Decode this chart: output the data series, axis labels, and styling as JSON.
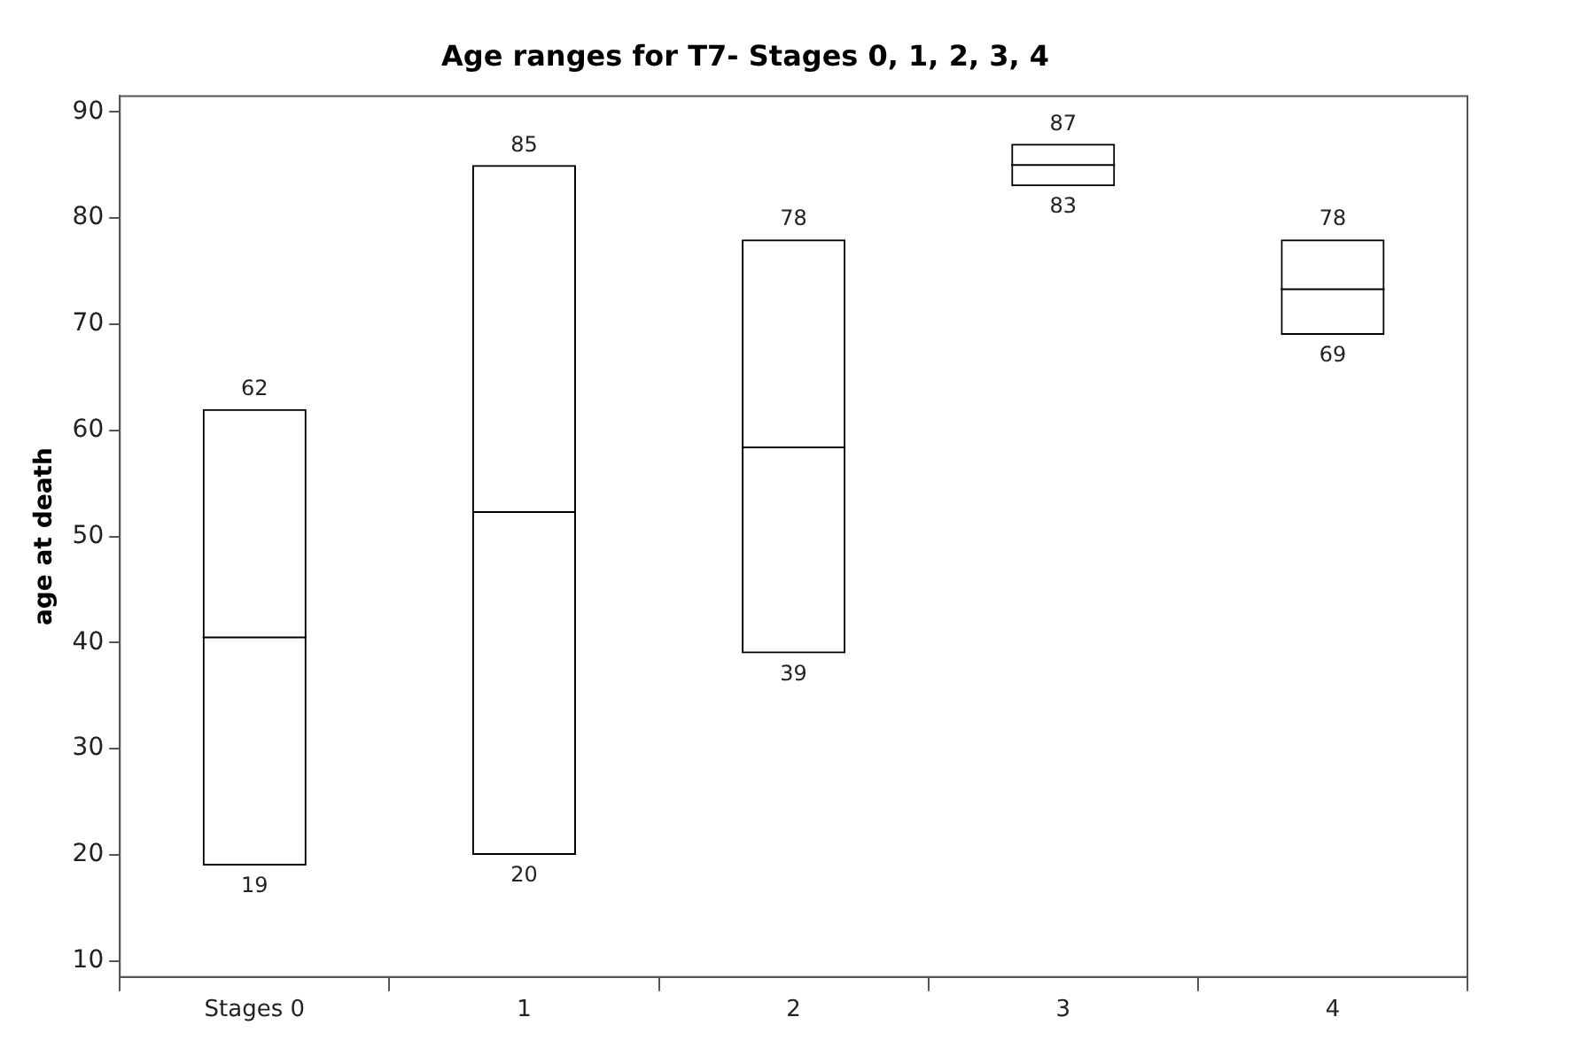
{
  "chart_data": {
    "type": "box",
    "title": "Age ranges for T7- Stages 0, 1, 2, 3, 4",
    "ylabel": "age at death",
    "categories": [
      "Stages 0",
      "1",
      "2",
      "3",
      "4"
    ],
    "boxes": [
      {
        "low": 19,
        "q1": 19,
        "median": 40.5,
        "q3": 62,
        "high": 62
      },
      {
        "low": 20,
        "q1": 20,
        "median": 52.3,
        "q3": 85,
        "high": 85
      },
      {
        "low": 39,
        "q1": 39,
        "median": 58.4,
        "q3": 78,
        "high": 78
      },
      {
        "low": 83,
        "q1": 83,
        "median": 85,
        "q3": 87,
        "high": 87
      },
      {
        "low": 69,
        "q1": 69,
        "median": 73.3,
        "q3": 78,
        "high": 78
      }
    ],
    "annotations": [
      {
        "text": "62",
        "x": "Stages 0",
        "y": 62
      },
      {
        "text": "19",
        "x": "Stages 0",
        "y": 19
      },
      {
        "text": "85",
        "x": "1",
        "y": 85
      },
      {
        "text": "20",
        "x": "1",
        "y": 20
      },
      {
        "text": "78",
        "x": "2",
        "y": 78
      },
      {
        "text": "39",
        "x": "2",
        "y": 39
      },
      {
        "text": "87",
        "x": "3",
        "y": 87
      },
      {
        "text": "83",
        "x": "3",
        "y": 83
      },
      {
        "text": "78",
        "x": "4",
        "y": 78
      },
      {
        "text": "69",
        "x": "4",
        "y": 69
      }
    ],
    "color": "#000000",
    "grid": false,
    "legend": false,
    "ylim": [
      8.5,
      91.5
    ],
    "yticks": [
      10,
      20,
      30,
      40,
      50,
      60,
      70,
      80,
      90
    ]
  }
}
